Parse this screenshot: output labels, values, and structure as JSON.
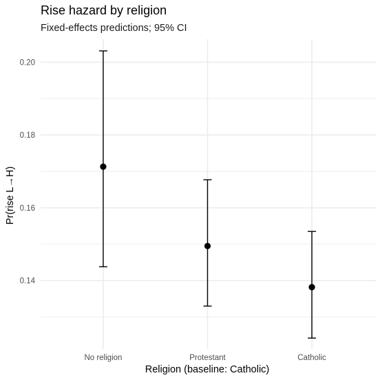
{
  "chart_data": {
    "type": "errorbar",
    "title": "Rise hazard by religion",
    "subtitle": "Fixed-effects predictions; 95% CI",
    "xlabel": "Religion (baseline: Catholic)",
    "ylabel": "Pr(rise L→H)",
    "categories": [
      "No religion",
      "Protestant",
      "Catholic"
    ],
    "estimate": [
      0.1713,
      0.1495,
      0.1382
    ],
    "lower": [
      0.1438,
      0.133,
      0.1242
    ],
    "upper": [
      0.2031,
      0.1677,
      0.1535
    ],
    "y_ticks": [
      0.14,
      0.16,
      0.18,
      0.2
    ],
    "y_tick_labels": [
      "0.14",
      "0.16",
      "0.18",
      "0.20"
    ],
    "ylim": [
      0.1212,
      0.2063
    ],
    "grid": true,
    "legend": "none",
    "colors": {
      "marker": "#000000",
      "gridline": "#ebebeb"
    }
  }
}
